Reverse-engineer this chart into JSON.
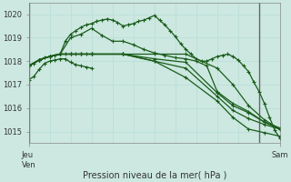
{
  "bg_color": "#cce8e0",
  "grid_color": "#b8ddd8",
  "axis_color": "#888888",
  "line_color": "#1a5c1a",
  "marker": "P",
  "markersize": 3,
  "linewidth": 0.9,
  "ylim": [
    1014.5,
    1020.5
  ],
  "yticks": [
    1015,
    1016,
    1017,
    1018,
    1019,
    1020
  ],
  "xlabel": "Pression niveau de la mer( hPa )",
  "xtick_labels": [
    "Jeu\nVen",
    "Sam"
  ],
  "xtick_pos": [
    0,
    96
  ],
  "x_total": 96,
  "vline_positions": [
    0,
    8,
    16,
    24,
    32,
    40,
    48,
    56,
    64,
    72,
    80,
    88,
    96
  ],
  "series": [
    [
      0,
      1017.8,
      2,
      1017.9,
      4,
      1018.05,
      6,
      1018.15,
      8,
      1018.2,
      10,
      1018.25,
      12,
      1018.3,
      14,
      1018.3,
      16,
      1018.3,
      18,
      1018.3,
      20,
      1018.3,
      22,
      1018.3,
      24,
      1018.3,
      36,
      1018.3,
      48,
      1018.3,
      60,
      1018.3,
      72,
      1017.7,
      78,
      1017.0,
      84,
      1016.1,
      90,
      1015.5,
      96,
      1015.1
    ],
    [
      0,
      1017.8,
      4,
      1018.05,
      8,
      1018.2,
      12,
      1018.3,
      14,
      1018.85,
      16,
      1019.15,
      18,
      1019.3,
      20,
      1019.45,
      22,
      1019.55,
      24,
      1019.6,
      26,
      1019.7,
      28,
      1019.75,
      30,
      1019.8,
      32,
      1019.75,
      34,
      1019.65,
      36,
      1019.5,
      38,
      1019.55,
      40,
      1019.6,
      42,
      1019.7,
      44,
      1019.75,
      46,
      1019.85,
      48,
      1019.95,
      50,
      1019.75,
      52,
      1019.55,
      54,
      1019.3,
      56,
      1019.05,
      58,
      1018.75,
      60,
      1018.5,
      62,
      1018.3,
      64,
      1018.1,
      66,
      1018.0,
      68,
      1018.0,
      70,
      1018.1,
      72,
      1018.2,
      74,
      1018.25,
      76,
      1018.3,
      78,
      1018.2,
      80,
      1018.05,
      82,
      1017.8,
      84,
      1017.55,
      86,
      1017.1,
      88,
      1016.7,
      90,
      1016.2,
      92,
      1015.6,
      94,
      1015.05,
      96,
      1014.7
    ],
    [
      0,
      1017.8,
      4,
      1018.05,
      8,
      1018.2,
      12,
      1018.3,
      16,
      1019.0,
      20,
      1019.15,
      24,
      1019.4,
      28,
      1019.1,
      32,
      1018.85,
      36,
      1018.85,
      40,
      1018.7,
      44,
      1018.5,
      48,
      1018.35,
      52,
      1018.25,
      56,
      1018.15,
      60,
      1018.1,
      64,
      1018.0,
      68,
      1017.8,
      72,
      1016.7,
      78,
      1016.2,
      84,
      1015.85,
      90,
      1015.4,
      96,
      1015.1
    ],
    [
      0,
      1017.8,
      4,
      1018.05,
      8,
      1018.2,
      12,
      1018.3,
      16,
      1018.3,
      20,
      1018.3,
      24,
      1018.3,
      36,
      1018.3,
      48,
      1018.1,
      60,
      1017.95,
      72,
      1016.65,
      78,
      1016.1,
      84,
      1015.8,
      90,
      1015.4,
      96,
      1015.15
    ],
    [
      0,
      1017.8,
      4,
      1018.05,
      8,
      1018.2,
      12,
      1018.3,
      16,
      1018.3,
      20,
      1018.3,
      24,
      1018.3,
      36,
      1018.3,
      48,
      1018.0,
      60,
      1017.7,
      72,
      1016.5,
      78,
      1015.9,
      84,
      1015.55,
      90,
      1015.3,
      96,
      1015.1
    ],
    [
      0,
      1017.8,
      4,
      1018.05,
      8,
      1018.2,
      12,
      1018.3,
      24,
      1018.3,
      36,
      1018.3,
      48,
      1018.0,
      60,
      1017.3,
      72,
      1016.3,
      78,
      1015.6,
      84,
      1015.1,
      90,
      1014.95,
      96,
      1014.8
    ],
    [
      0,
      1017.2,
      2,
      1017.35,
      4,
      1017.65,
      6,
      1017.9,
      8,
      1018.0,
      10,
      1018.05,
      12,
      1018.1,
      14,
      1018.1,
      16,
      1017.95,
      18,
      1017.85,
      20,
      1017.8,
      22,
      1017.75,
      24,
      1017.7
    ]
  ]
}
